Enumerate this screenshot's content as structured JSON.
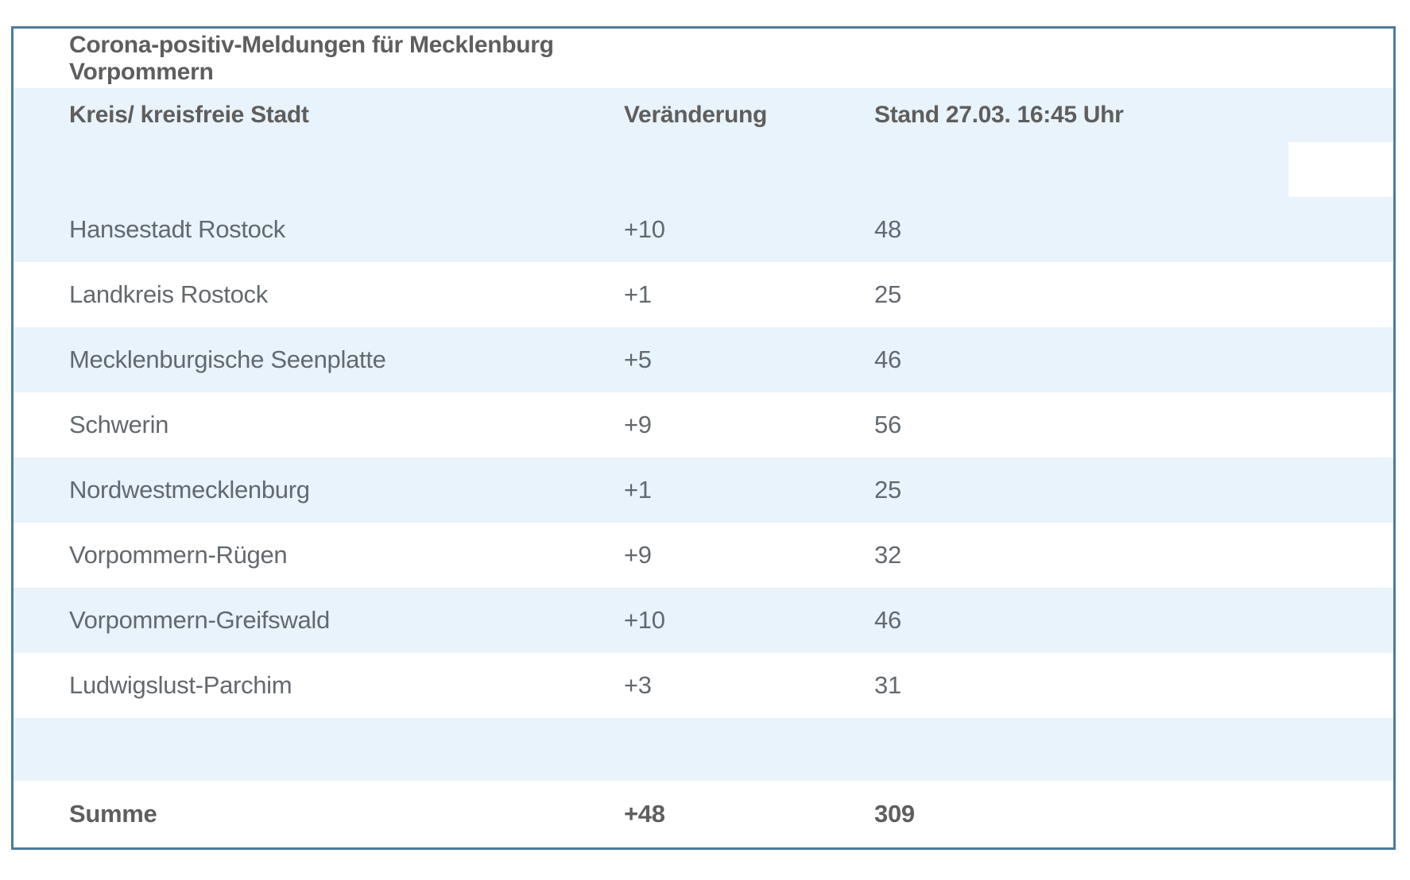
{
  "chart_data": {
    "type": "table",
    "title": "Corona-positiv-Meldungen für Mecklenburg Vorpommern",
    "columns": [
      "Kreis/ kreisfreie Stadt",
      "Veränderung",
      "Stand 27.03. 16:45 Uhr"
    ],
    "rows": [
      {
        "region": "Hansestadt Rostock",
        "change": "+10",
        "total": "48"
      },
      {
        "region": "Landkreis Rostock",
        "change": "+1",
        "total": "25"
      },
      {
        "region": "Mecklenburgische Seenplatte",
        "change": "+5",
        "total": "46"
      },
      {
        "region": "Schwerin",
        "change": "+9",
        "total": "56"
      },
      {
        "region": "Nordwestmecklenburg",
        "change": "+1",
        "total": "25"
      },
      {
        "region": "Vorpommern-Rügen",
        "change": "+9",
        "total": "32"
      },
      {
        "region": "Vorpommern-Greifswald",
        "change": "+10",
        "total": "46"
      },
      {
        "region": "Ludwigslust-Parchim",
        "change": "+3",
        "total": "31"
      }
    ],
    "change_values": [
      10,
      1,
      5,
      9,
      1,
      9,
      10,
      3
    ],
    "total_values": [
      48,
      25,
      46,
      56,
      25,
      32,
      46,
      31
    ],
    "summary_row": {
      "label": "Summe",
      "change": "+48",
      "total": "309"
    },
    "layout_hints": {
      "row_striping": "alternating light-blue / white, first data row blue",
      "header_band": "double-height light-blue band with white empty cell at far right",
      "grid": "off"
    }
  },
  "colors": {
    "border": "#4c7b9d",
    "row_blue": "#e8f3fb",
    "row_white": "#ffffff",
    "text_header": "#5e5e5e",
    "text_data": "#63696e"
  }
}
